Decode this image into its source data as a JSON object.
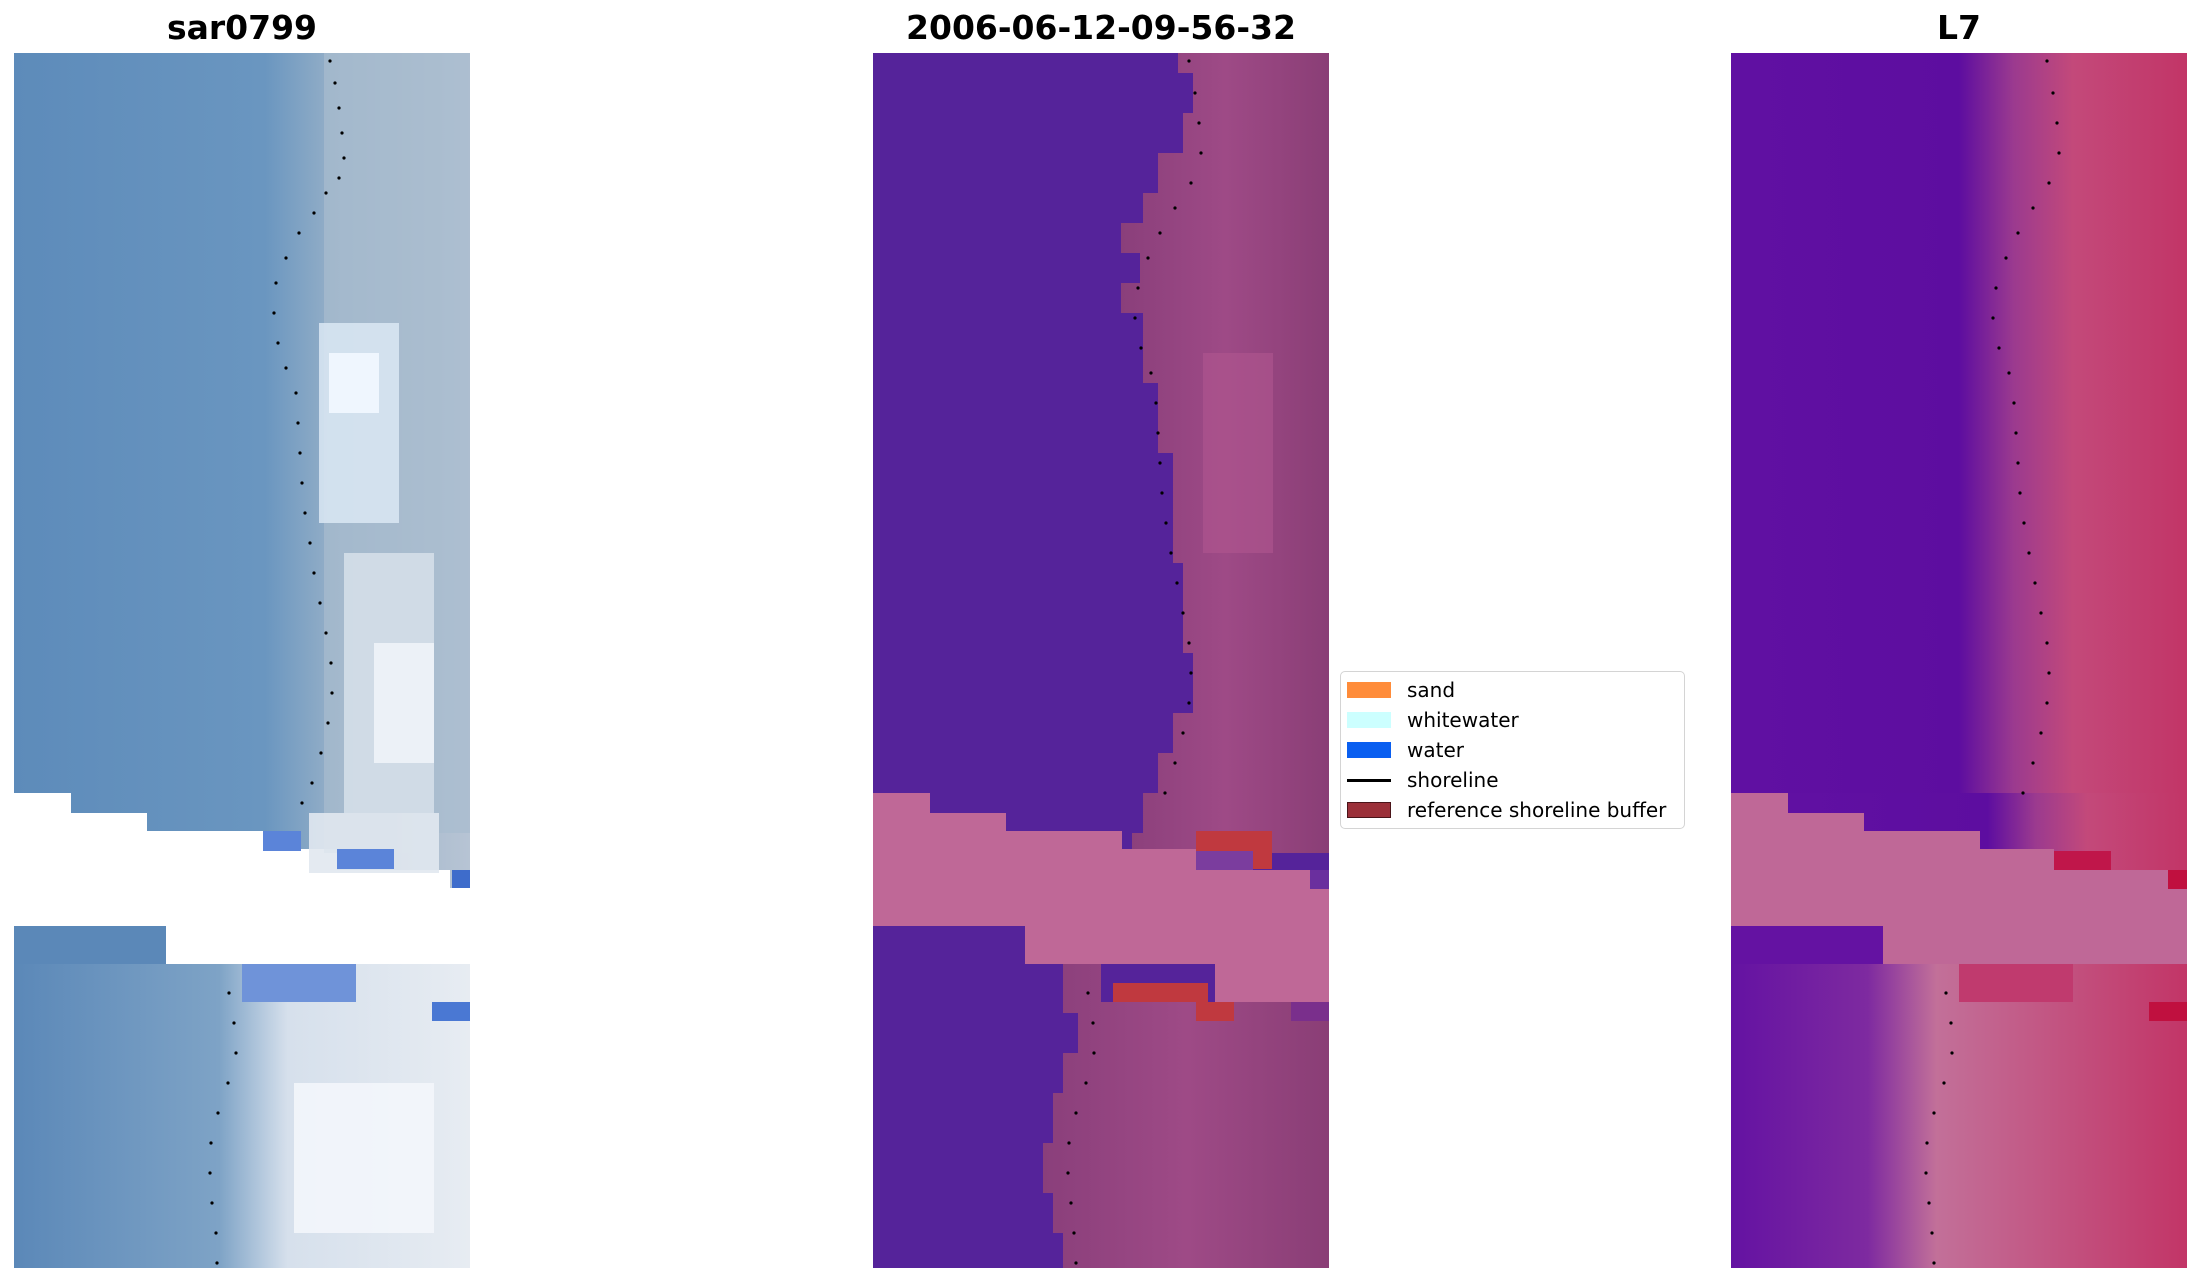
{
  "titles": {
    "left": "sar0799",
    "center": "2006-06-12-09-56-32",
    "right": "L7"
  },
  "legend": {
    "items": [
      {
        "label": "sand",
        "color": "#ff8c3a",
        "kind": "patch"
      },
      {
        "label": "whitewater",
        "color": "#ccffff",
        "kind": "patch"
      },
      {
        "label": "water",
        "color": "#0a5ff0",
        "kind": "patch"
      },
      {
        "label": "shoreline",
        "color": "#000000",
        "kind": "line"
      },
      {
        "label": "reference shoreline buffer",
        "color": "#9b3039",
        "kind": "patch"
      }
    ]
  },
  "colors": {
    "rgb_water": "#5b8cbf",
    "rgb_beach": "#cfd8e4",
    "class_water": "#55239a",
    "class_land": "#8c3e78",
    "class_nodata": "#bf6897",
    "ndwi_water": "#5e10a0",
    "ndwi_land": "#c23b6c",
    "ndwi_nodata": "#bf6897",
    "buffer_red": "#c0393f"
  }
}
